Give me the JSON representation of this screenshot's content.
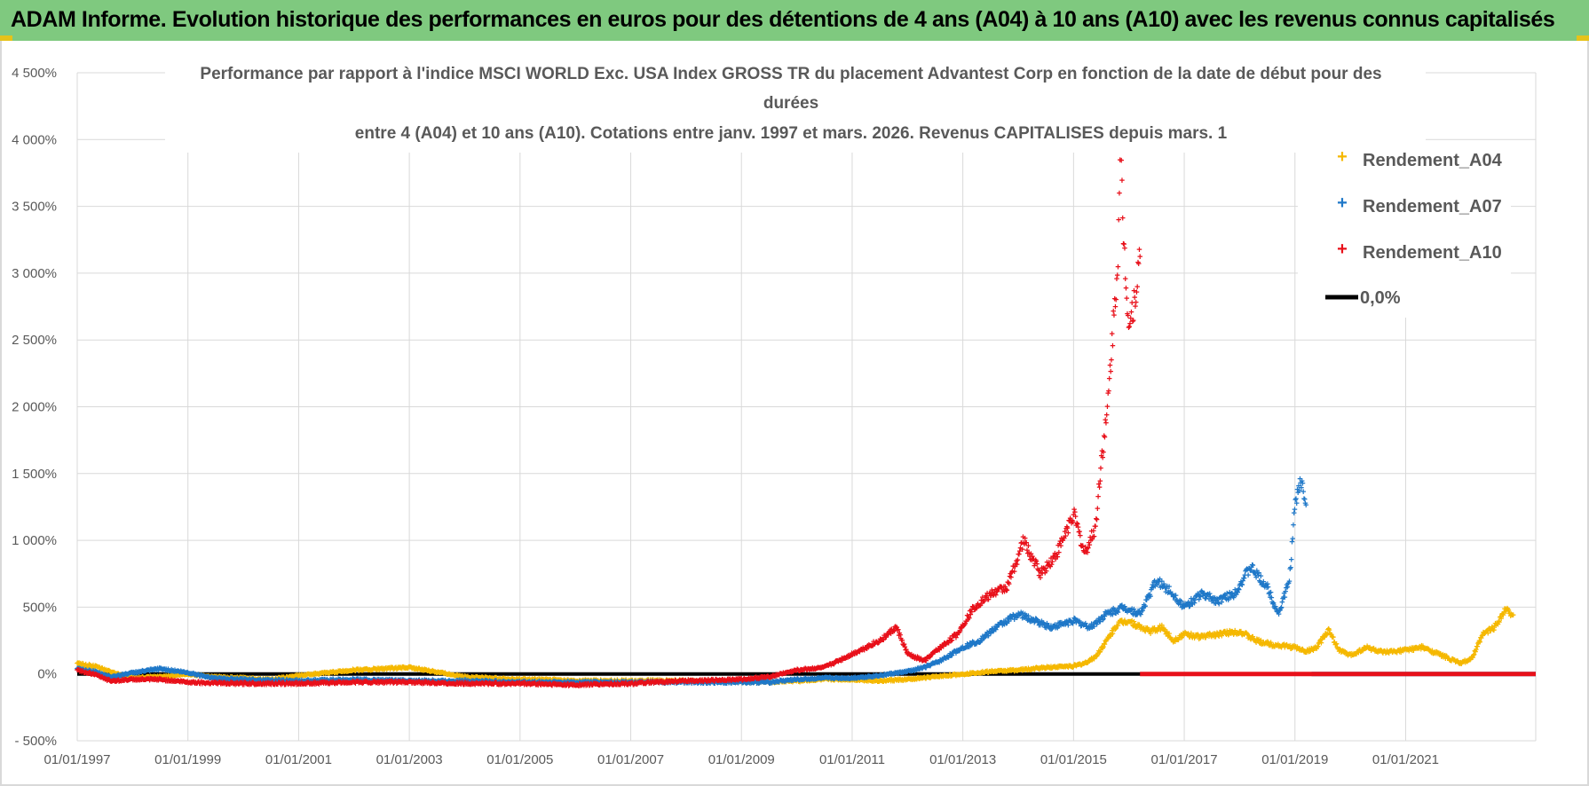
{
  "header": {
    "title": "ADAM Informe. Evolution historique des performances en euros pour des détentions de 4 ans (A04) à 10 ans (A10) avec les revenus connus capitalisés"
  },
  "colors": {
    "banner": "#7fc97f",
    "a04": "#f5b800",
    "a07": "#1f78c8",
    "a10": "#e8101a",
    "zero": "#000000",
    "grid": "#d9d9d9"
  },
  "chart_data": {
    "type": "scatter",
    "title_lines": [
      "Performance par rapport à l'indice MSCI WORLD Exc. USA Index GROSS TR  du placement Advantest Corp en fonction de la date de début pour des",
      "durées",
      "entre 4 (A04) et 10 ans (A10). Cotations entre janv. 1997 et mars. 2026. Revenus CAPITALISES depuis mars. 1"
    ],
    "xlabel": "",
    "ylabel": "",
    "x_range": [
      1997.0,
      2023.35
    ],
    "ylim": [
      -500,
      4500
    ],
    "y_ticks": [
      -500,
      0,
      500,
      1000,
      1500,
      2000,
      2500,
      3000,
      3500,
      4000,
      4500
    ],
    "y_tick_labels": [
      "- 500%",
      "0%",
      "500%",
      "1 000%",
      "1 500%",
      "2 000%",
      "2 500%",
      "3 000%",
      "3 500%",
      "4 000%",
      "4 500%"
    ],
    "x_ticks": [
      1997,
      1999,
      2001,
      2003,
      2005,
      2007,
      2009,
      2011,
      2013,
      2015,
      2017,
      2019,
      2021
    ],
    "x_tick_labels": [
      "01/01/1997",
      "01/01/1999",
      "01/01/2001",
      "01/01/2003",
      "01/01/2005",
      "01/01/2007",
      "01/01/2009",
      "01/01/2011",
      "01/01/2013",
      "01/01/2015",
      "01/01/2017",
      "01/01/2019",
      "01/01/2021"
    ],
    "legend": [
      "Rendement_A04",
      "Rendement_A07",
      "Rendement_A10",
      "0,0%"
    ],
    "legend_position": "top-right",
    "series": [
      {
        "name": "Rendement_A04",
        "x": [
          1997.0,
          1997.3,
          1997.6,
          1998.0,
          1998.5,
          1999.0,
          1999.5,
          2000.0,
          2000.5,
          2001.0,
          2001.5,
          2002.0,
          2002.5,
          2003.0,
          2003.3,
          2003.6,
          2004.0,
          2004.5,
          2005.0,
          2005.5,
          2006.0,
          2006.5,
          2007.0,
          2007.5,
          2008.0,
          2008.5,
          2009.0,
          2009.5,
          2010.0,
          2010.5,
          2011.0,
          2011.5,
          2012.0,
          2012.5,
          2013.0,
          2013.5,
          2014.0,
          2014.5,
          2015.0,
          2015.2,
          2015.4,
          2015.6,
          2015.8,
          2016.0,
          2016.2,
          2016.4,
          2016.6,
          2016.8,
          2017.0,
          2017.3,
          2017.6,
          2018.0,
          2018.3,
          2018.6,
          2019.0,
          2019.2,
          2019.4,
          2019.6,
          2019.8,
          2020.0,
          2020.3,
          2020.6,
          2021.0,
          2021.3,
          2021.6,
          2022.0,
          2022.2,
          2022.4,
          2022.6,
          2022.8,
          2022.95
        ],
        "values": [
          80,
          60,
          20,
          -30,
          -20,
          0,
          -20,
          -30,
          -40,
          -10,
          10,
          30,
          40,
          50,
          30,
          10,
          -20,
          -30,
          -40,
          -40,
          -50,
          -50,
          -50,
          -50,
          -50,
          -50,
          -60,
          -60,
          -50,
          -40,
          -40,
          -50,
          -40,
          -20,
          0,
          20,
          30,
          50,
          60,
          80,
          130,
          250,
          380,
          400,
          350,
          320,
          350,
          250,
          300,
          280,
          300,
          320,
          250,
          220,
          200,
          170,
          200,
          330,
          180,
          140,
          200,
          160,
          180,
          200,
          150,
          80,
          120,
          300,
          350,
          480,
          450
        ]
      },
      {
        "name": "Rendement_A07",
        "x": [
          1997.0,
          1997.3,
          1997.6,
          1998.0,
          1998.5,
          1999.0,
          1999.5,
          2000.0,
          2001.0,
          2002.0,
          2003.0,
          2004.0,
          2005.0,
          2006.0,
          2007.0,
          2008.0,
          2009.0,
          2009.5,
          2010.0,
          2010.5,
          2011.0,
          2011.5,
          2012.0,
          2012.3,
          2012.6,
          2013.0,
          2013.3,
          2013.6,
          2014.0,
          2014.3,
          2014.6,
          2015.0,
          2015.3,
          2015.6,
          2015.9,
          2016.2,
          2016.5,
          2016.8,
          2017.0,
          2017.3,
          2017.6,
          2017.9,
          2018.2,
          2018.5,
          2018.7,
          2018.9,
          2019.0,
          2019.1,
          2019.2
        ],
        "values": [
          40,
          20,
          -20,
          10,
          40,
          10,
          -30,
          -40,
          -50,
          -40,
          -50,
          -50,
          -60,
          -60,
          -60,
          -60,
          -60,
          -60,
          -40,
          -30,
          -30,
          -10,
          20,
          50,
          100,
          200,
          250,
          350,
          450,
          400,
          350,
          400,
          350,
          450,
          500,
          450,
          700,
          600,
          500,
          600,
          550,
          600,
          800,
          650,
          450,
          700,
          1250,
          1450,
          1300
        ]
      },
      {
        "name": "Rendement_A10",
        "x": [
          1997.0,
          1997.3,
          1997.6,
          1998.0,
          1998.5,
          1999.0,
          2000.0,
          2001.0,
          2002.0,
          2003.0,
          2004.0,
          2005.0,
          2006.0,
          2007.0,
          2008.0,
          2009.0,
          2009.5,
          2010.0,
          2010.5,
          2011.0,
          2011.5,
          2011.8,
          2012.0,
          2012.3,
          2012.6,
          2012.9,
          2013.2,
          2013.5,
          2013.8,
          2014.1,
          2014.4,
          2014.7,
          2015.0,
          2015.2,
          2015.4,
          2015.5,
          2015.6,
          2015.7,
          2015.8,
          2015.85,
          2015.9,
          2016.0,
          2016.1,
          2016.2
        ],
        "values": [
          30,
          0,
          -50,
          -40,
          -40,
          -60,
          -70,
          -70,
          -60,
          -60,
          -70,
          -70,
          -80,
          -70,
          -50,
          -40,
          -20,
          30,
          50,
          150,
          250,
          350,
          150,
          100,
          200,
          300,
          500,
          600,
          650,
          1000,
          750,
          900,
          1200,
          900,
          1100,
          1600,
          1900,
          2500,
          3100,
          3900,
          3300,
          2600,
          2800,
          3100
        ]
      },
      {
        "name": "0,0%",
        "x": [
          1997.0,
          2023.35
        ],
        "values": [
          0,
          0
        ]
      }
    ]
  }
}
